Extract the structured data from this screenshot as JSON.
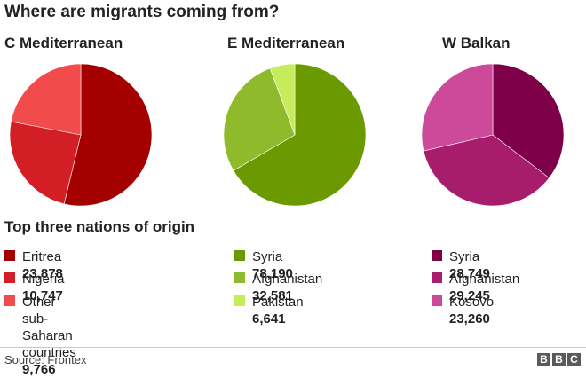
{
  "header": {
    "title": "Where are migrants coming from?"
  },
  "subheading": "Top three nations of origin",
  "footer": {
    "source": "Source: Frontex",
    "logo_letters": [
      "B",
      "B",
      "C"
    ]
  },
  "chart_data": [
    {
      "type": "pie",
      "title": "C Mediterranean",
      "slices": [
        {
          "label": "Eritrea",
          "value": 23878,
          "display": "23,878",
          "color": "#a40000"
        },
        {
          "label": "Nigeria",
          "value": 10747,
          "display": "10,747",
          "color": "#d41e25"
        },
        {
          "label": "Other sub-Saharan countries",
          "label_lines": [
            "Other sub-Saharan",
            "countries"
          ],
          "value": 9766,
          "display": "9,766",
          "color": "#f14b4b"
        }
      ]
    },
    {
      "type": "pie",
      "title": "E Mediterranean",
      "slices": [
        {
          "label": "Syria",
          "value": 78190,
          "display": "78,190",
          "color": "#6b9a00"
        },
        {
          "label": "Afghanistan",
          "value": 32581,
          "display": "32,581",
          "color": "#8fba2b"
        },
        {
          "label": "Pakistan",
          "value": 6641,
          "display": "6,641",
          "color": "#c6ec5c"
        }
      ]
    },
    {
      "type": "pie",
      "title": "W Balkan",
      "slices": [
        {
          "label": "Syria",
          "value": 28749,
          "display": "28,749",
          "color": "#7d0049"
        },
        {
          "label": "Afghanistan",
          "value": 29245,
          "display": "29,245",
          "color": "#a81c6c"
        },
        {
          "label": "Kosovo",
          "value": 23260,
          "display": "23,260",
          "color": "#cd4a9b"
        }
      ]
    }
  ]
}
